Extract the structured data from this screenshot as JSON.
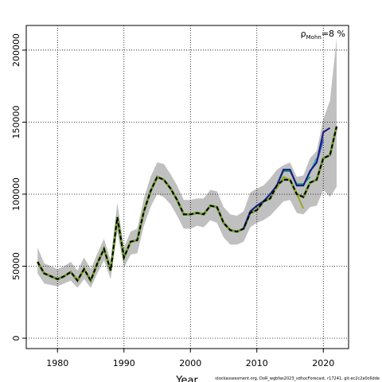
{
  "chart_data": {
    "type": "line",
    "x_label": "Year",
    "annotation": {
      "symbol": "ρ",
      "subscript": "Mohn",
      "text": "=8 %"
    },
    "footer": "stockassessment.org, DoR_wgbfas2023_sdhocForecast, r17241, git:ec2c2a0c6dde",
    "xlim": [
      1975.3,
      2023.8
    ],
    "ylim": [
      -7180,
      217100
    ],
    "xticks": [
      1980,
      1990,
      2000,
      2010,
      2020
    ],
    "yticks": [
      0,
      50000,
      100000,
      150000,
      200000
    ],
    "grid": true,
    "x": [
      1977,
      1978,
      1979,
      1980,
      1981,
      1982,
      1983,
      1984,
      1985,
      1986,
      1987,
      1988,
      1989,
      1990,
      1991,
      1992,
      1993,
      1994,
      1995,
      1996,
      1997,
      1998,
      1999,
      2000,
      2001,
      2002,
      2003,
      2004,
      2005,
      2006,
      2007,
      2008,
      2009,
      2010,
      2011,
      2012,
      2013,
      2014,
      2015,
      2016,
      2017,
      2018,
      2019,
      2020,
      2021,
      2022
    ],
    "band": {
      "color": "#c0c0c0",
      "upper": [
        63000,
        52000,
        50000,
        48000,
        50000,
        53000,
        47000,
        56000,
        48000,
        59000,
        69000,
        54000,
        94000,
        63000,
        74000,
        76000,
        97000,
        112000,
        122000,
        121000,
        114000,
        106000,
        96000,
        96000,
        97000,
        97000,
        103000,
        102000,
        91000,
        86000,
        85000,
        88000,
        101000,
        104000,
        106000,
        111000,
        117000,
        120000,
        122000,
        112000,
        113000,
        125000,
        130000,
        152000,
        165000,
        208000
      ],
      "lower": [
        45000,
        38000,
        37000,
        36000,
        38000,
        40000,
        35000,
        41000,
        35000,
        45000,
        54000,
        41000,
        74000,
        49000,
        58000,
        59000,
        78000,
        91000,
        100000,
        98000,
        93000,
        85000,
        76000,
        76000,
        78000,
        77000,
        82000,
        80000,
        70000,
        65000,
        65000,
        67000,
        77000,
        80000,
        82000,
        85000,
        90000,
        95000,
        96000,
        87000,
        86000,
        91000,
        92000,
        103000,
        98000,
        105000
      ]
    },
    "base": {
      "color": "#6f9a2e",
      "dash_color": "#000000",
      "values": [
        53000,
        45000,
        43000,
        41000,
        43000,
        46000,
        40000,
        48000,
        40000,
        52000,
        62000,
        47000,
        84000,
        56000,
        67000,
        68000,
        88000,
        102000,
        112000,
        110000,
        104000,
        96000,
        86000,
        86000,
        87000,
        86000,
        92000,
        91000,
        80000,
        75000,
        74000,
        76000,
        87000,
        89000,
        95000,
        97000,
        106000,
        110000,
        110000,
        100000,
        98000,
        108000,
        110000,
        125000,
        127000,
        147000
      ]
    },
    "series": [
      {
        "color": "#9aa52a",
        "x": [
          2008,
          2009,
          2010,
          2011,
          2012,
          2013,
          2014,
          2015,
          2016,
          2017
        ],
        "values": [
          76000,
          88000,
          92000,
          95000,
          100000,
          104000,
          112000,
          110000,
          100000,
          90000
        ]
      },
      {
        "color": "#1f9e6e",
        "x": [
          2008,
          2009,
          2010,
          2011,
          2012,
          2013,
          2014,
          2015,
          2016,
          2017,
          2018
        ],
        "values": [
          76000,
          88000,
          92000,
          95000,
          100000,
          106000,
          116000,
          116000,
          107000,
          107000,
          112000
        ]
      },
      {
        "color": "#26a9c9",
        "x": [
          2008,
          2009,
          2010,
          2011,
          2012,
          2013,
          2014,
          2015,
          2016,
          2017,
          2018,
          2019
        ],
        "values": [
          76000,
          88000,
          92000,
          95000,
          100000,
          106000,
          117000,
          117000,
          106000,
          106000,
          115000,
          125000
        ]
      },
      {
        "color": "#2b6ccc",
        "x": [
          2008,
          2009,
          2010,
          2011,
          2012,
          2013,
          2014,
          2015,
          2016,
          2017,
          2018,
          2019,
          2020
        ],
        "values": [
          76000,
          88000,
          92000,
          95000,
          100000,
          106000,
          117000,
          117000,
          106000,
          106000,
          116000,
          122000,
          138000
        ]
      },
      {
        "color": "#1a1a80",
        "x": [
          2008,
          2009,
          2010,
          2011,
          2012,
          2013,
          2014,
          2015,
          2016,
          2017,
          2018,
          2019,
          2020,
          2021
        ],
        "values": [
          76000,
          88000,
          92000,
          95000,
          100000,
          106000,
          117000,
          117000,
          106000,
          106000,
          116000,
          122000,
          143000,
          146000
        ]
      }
    ]
  }
}
